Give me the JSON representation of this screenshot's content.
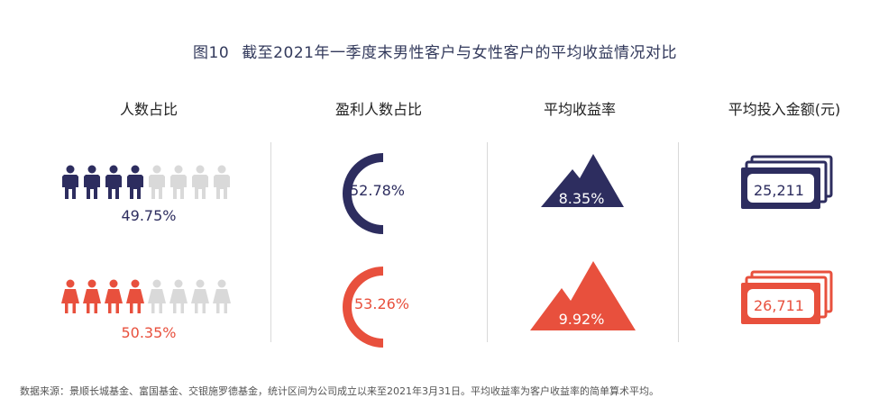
{
  "title": {
    "figure_no": "图10",
    "text": "截至2021年一季度末男性客户与女性客户的平均收益情况对比"
  },
  "columns": [
    "人数占比",
    "盈利人数占比",
    "平均收益率",
    "平均投入金额(元)"
  ],
  "male": {
    "share": "49.75%",
    "profit_share": "52.78%",
    "avg_return": "8.35%",
    "avg_amount": "25,211"
  },
  "female": {
    "share": "50.35%",
    "profit_share": "53.26%",
    "avg_return": "9.92%",
    "avg_amount": "26,711"
  },
  "colors": {
    "male": "#2d2d5f",
    "female": "#e8503d",
    "inactive": "#d9d9d9"
  },
  "icons": [
    "person-icon",
    "person-dress-icon",
    "arc-gauge-icon",
    "mountain-icon",
    "banknote-stack-icon"
  ],
  "chart_data": {
    "type": "table",
    "categories": [
      "人数占比",
      "盈利人数占比",
      "平均收益率",
      "平均投入金额(元)"
    ],
    "series": [
      {
        "name": "male",
        "values": [
          49.75,
          52.78,
          8.35,
          25211
        ]
      },
      {
        "name": "female",
        "values": [
          50.35,
          53.26,
          9.92,
          26711
        ]
      }
    ]
  },
  "footer": "数据来源：景顺长城基金、富国基金、交银施罗德基金，统计区间为公司成立以来至2021年3月31日。平均收益率为客户收益率的简单算术平均。"
}
